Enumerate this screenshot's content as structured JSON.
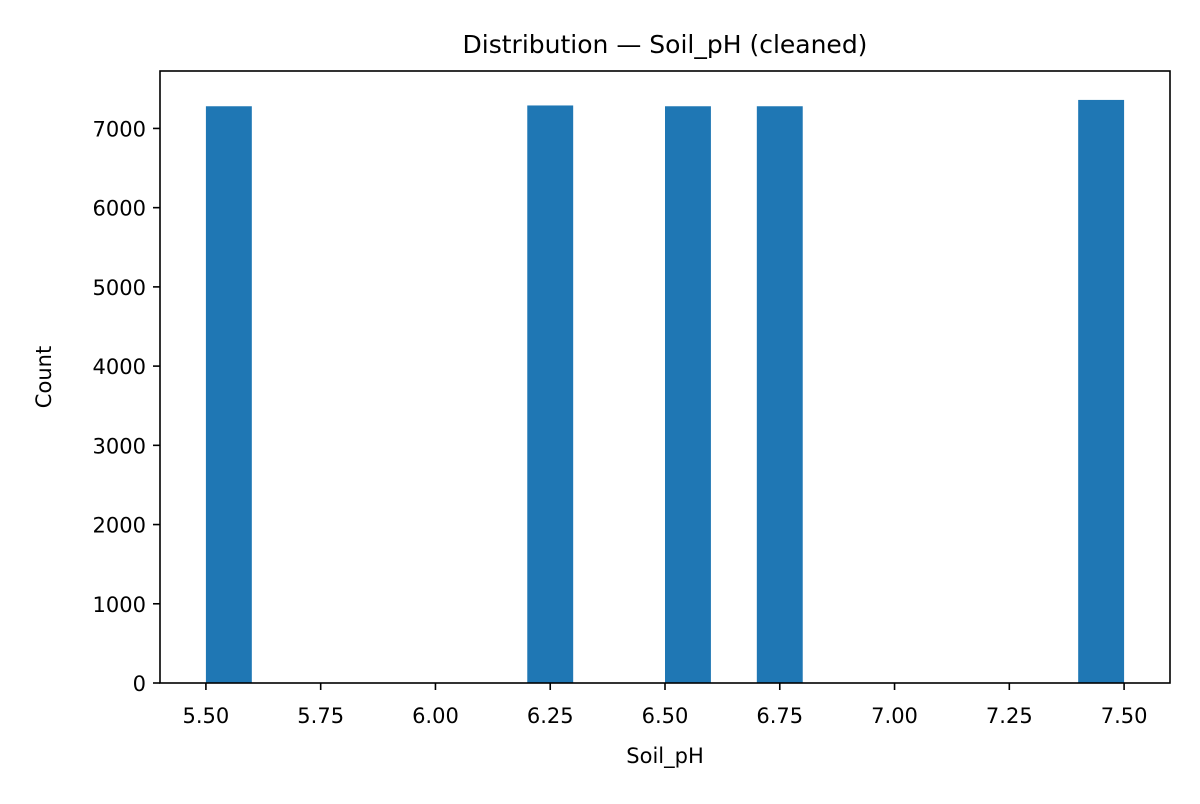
{
  "chart_data": {
    "type": "bar",
    "title": "Distribution — Soil_pH (cleaned)",
    "xlabel": "Soil_pH",
    "ylabel": "Count",
    "xlim": [
      5.4,
      7.6
    ],
    "ylim": [
      0,
      7725
    ],
    "bar_color": "#1f77b4",
    "bins": [
      {
        "x0": 5.5,
        "x1": 5.6,
        "count": 7280
      },
      {
        "x0": 6.2,
        "x1": 6.3,
        "count": 7290
      },
      {
        "x0": 6.5,
        "x1": 6.6,
        "count": 7280
      },
      {
        "x0": 6.7,
        "x1": 6.8,
        "count": 7280
      },
      {
        "x0": 7.4,
        "x1": 7.5,
        "count": 7360
      }
    ],
    "xticks": [
      5.5,
      5.75,
      6.0,
      6.25,
      6.5,
      6.75,
      7.0,
      7.25,
      7.5
    ],
    "xtick_labels": [
      "5.50",
      "5.75",
      "6.00",
      "6.25",
      "6.50",
      "6.75",
      "7.00",
      "7.25",
      "7.50"
    ],
    "yticks": [
      0,
      1000,
      2000,
      3000,
      4000,
      5000,
      6000,
      7000
    ],
    "ytick_labels": [
      "0",
      "1000",
      "2000",
      "3000",
      "4000",
      "5000",
      "6000",
      "7000"
    ],
    "grid": false,
    "legend": "none"
  }
}
